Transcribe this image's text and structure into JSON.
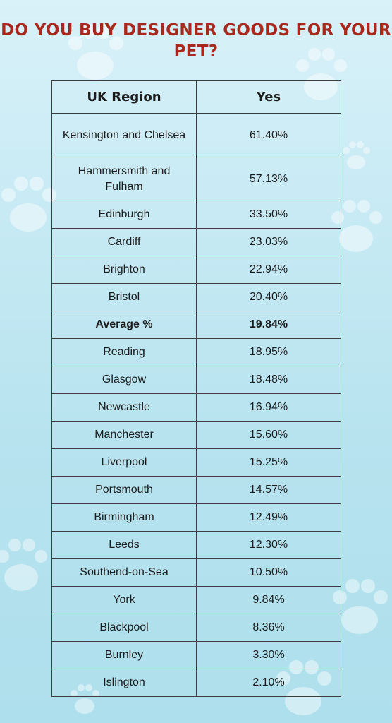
{
  "title": "DO YOU BUY DESIGNER GOODS FOR YOUR PET?",
  "colors": {
    "title": "#a8281e",
    "background_top": "#d9f1f8",
    "background_bottom": "#aedfec",
    "border": "#3d3d3d"
  },
  "chart_data": {
    "type": "table",
    "title": "DO YOU BUY DESIGNER GOODS FOR YOUR PET?",
    "columns": [
      "UK Region",
      "Yes"
    ],
    "rows": [
      {
        "region": "Kensington and Chelsea",
        "yes": "61.40%"
      },
      {
        "region": "Hammersmith and Fulham",
        "yes": "57.13%"
      },
      {
        "region": "Edinburgh",
        "yes": "33.50%"
      },
      {
        "region": "Cardiff",
        "yes": "23.03%"
      },
      {
        "region": "Brighton",
        "yes": "22.94%"
      },
      {
        "region": "Bristol",
        "yes": "20.40%"
      },
      {
        "region": "Average %",
        "yes": "19.84%",
        "highlight": true
      },
      {
        "region": "Reading",
        "yes": "18.95%"
      },
      {
        "region": "Glasgow",
        "yes": "18.48%"
      },
      {
        "region": "Newcastle",
        "yes": "16.94%"
      },
      {
        "region": "Manchester",
        "yes": "15.60%"
      },
      {
        "region": "Liverpool",
        "yes": "15.25%"
      },
      {
        "region": "Portsmouth",
        "yes": "14.57%"
      },
      {
        "region": "Birmingham",
        "yes": "12.49%"
      },
      {
        "region": "Leeds",
        "yes": "12.30%"
      },
      {
        "region": "Southend-on-Sea",
        "yes": "10.50%"
      },
      {
        "region": "York",
        "yes": "9.84%"
      },
      {
        "region": "Blackpool",
        "yes": "8.36%"
      },
      {
        "region": "Burnley",
        "yes": "3.30%"
      },
      {
        "region": "Islington",
        "yes": "2.10%"
      }
    ]
  }
}
